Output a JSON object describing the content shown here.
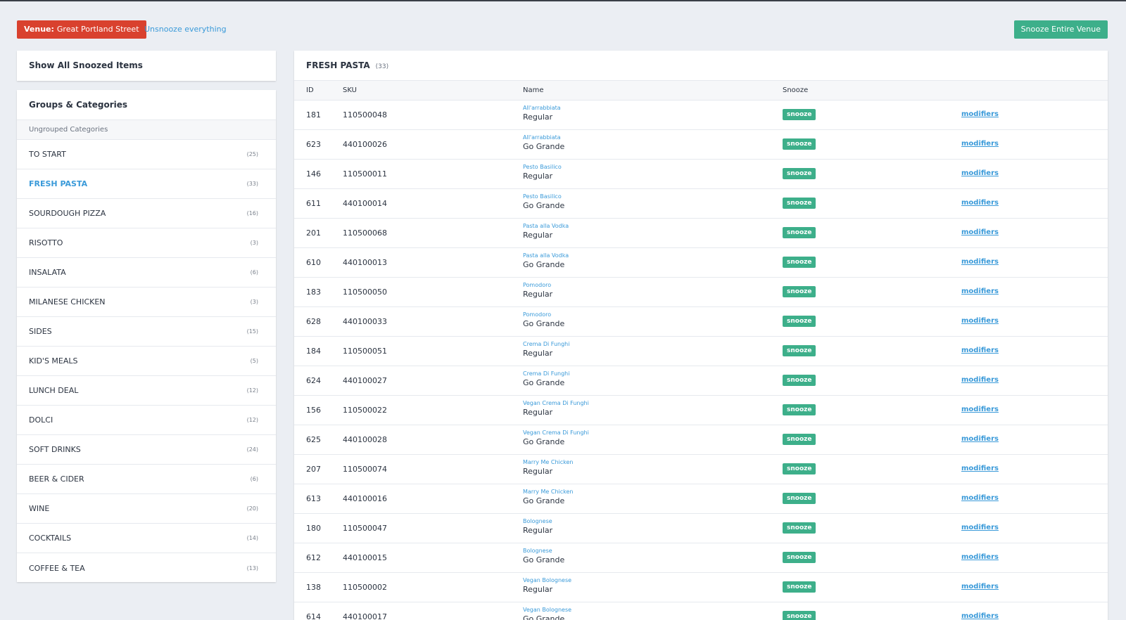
{
  "header": {
    "venue_label": "Venue:",
    "venue_name": "Great Portland Street",
    "unsnooze": "Unsnooze everything",
    "snooze_venue": "Snooze Entire Venue"
  },
  "sidebar": {
    "show_all": "Show All Snoozed Items",
    "groups_title": "Groups & Categories",
    "ungrouped": "Ungrouped Categories",
    "categories": [
      {
        "name": "TO START",
        "count": "(25)"
      },
      {
        "name": "FRESH PASTA",
        "count": "(33)"
      },
      {
        "name": "SOURDOUGH PIZZA",
        "count": "(16)"
      },
      {
        "name": "RISOTTO",
        "count": "(3)"
      },
      {
        "name": "INSALATA",
        "count": "(6)"
      },
      {
        "name": "MILANESE CHICKEN",
        "count": "(3)"
      },
      {
        "name": "SIDES",
        "count": "(15)"
      },
      {
        "name": "KID'S MEALS",
        "count": "(5)"
      },
      {
        "name": "LUNCH DEAL",
        "count": "(12)"
      },
      {
        "name": "DOLCI",
        "count": "(12)"
      },
      {
        "name": "SOFT DRINKS",
        "count": "(24)"
      },
      {
        "name": "BEER & CIDER",
        "count": "(6)"
      },
      {
        "name": "WINE",
        "count": "(20)"
      },
      {
        "name": "COCKTAILS",
        "count": "(14)"
      },
      {
        "name": "COFFEE & TEA",
        "count": "(13)"
      }
    ]
  },
  "table": {
    "title": "FRESH PASTA",
    "count": "(33)",
    "columns": [
      "ID",
      "SKU",
      "Name",
      "Snooze"
    ],
    "rows": [
      {
        "id": "181",
        "sku": "110500048",
        "item": "All'arrabbiata",
        "variant": "Regular",
        "snooze": "snooze",
        "modifiers": "modifiers"
      },
      {
        "id": "623",
        "sku": "440100026",
        "item": "All'arrabbiata",
        "variant": "Go Grande",
        "snooze": "snooze",
        "modifiers": "modifiers"
      },
      {
        "id": "146",
        "sku": "110500011",
        "item": "Pesto Basilico",
        "variant": "Regular",
        "snooze": "snooze",
        "modifiers": "modifiers"
      },
      {
        "id": "611",
        "sku": "440100014",
        "item": "Pesto Basilico",
        "variant": "Go Grande",
        "snooze": "snooze",
        "modifiers": "modifiers"
      },
      {
        "id": "201",
        "sku": "110500068",
        "item": "Pasta alla Vodka",
        "variant": "Regular",
        "snooze": "snooze",
        "modifiers": "modifiers"
      },
      {
        "id": "610",
        "sku": "440100013",
        "item": "Pasta alla Vodka",
        "variant": "Go Grande",
        "snooze": "snooze",
        "modifiers": "modifiers"
      },
      {
        "id": "183",
        "sku": "110500050",
        "item": "Pomodoro",
        "variant": "Regular",
        "snooze": "snooze",
        "modifiers": "modifiers"
      },
      {
        "id": "628",
        "sku": "440100033",
        "item": "Pomodoro",
        "variant": "Go Grande",
        "snooze": "snooze",
        "modifiers": "modifiers"
      },
      {
        "id": "184",
        "sku": "110500051",
        "item": "Crema Di Funghi",
        "variant": "Regular",
        "snooze": "snooze",
        "modifiers": "modifiers"
      },
      {
        "id": "624",
        "sku": "440100027",
        "item": "Crema Di Funghi",
        "variant": "Go Grande",
        "snooze": "snooze",
        "modifiers": "modifiers"
      },
      {
        "id": "156",
        "sku": "110500022",
        "item": "Vegan Crema Di Funghi",
        "variant": "Regular",
        "snooze": "snooze",
        "modifiers": "modifiers"
      },
      {
        "id": "625",
        "sku": "440100028",
        "item": "Vegan Crema Di Funghi",
        "variant": "Go Grande",
        "snooze": "snooze",
        "modifiers": "modifiers"
      },
      {
        "id": "207",
        "sku": "110500074",
        "item": "Marry Me Chicken",
        "variant": "Regular",
        "snooze": "snooze",
        "modifiers": "modifiers"
      },
      {
        "id": "613",
        "sku": "440100016",
        "item": "Marry Me Chicken",
        "variant": "Go Grande",
        "snooze": "snooze",
        "modifiers": "modifiers"
      },
      {
        "id": "180",
        "sku": "110500047",
        "item": "Bolognese",
        "variant": "Regular",
        "snooze": "snooze",
        "modifiers": "modifiers"
      },
      {
        "id": "612",
        "sku": "440100015",
        "item": "Bolognese",
        "variant": "Go Grande",
        "snooze": "snooze",
        "modifiers": "modifiers"
      },
      {
        "id": "138",
        "sku": "110500002",
        "item": "Vegan Bolognese",
        "variant": "Regular",
        "snooze": "snooze",
        "modifiers": "modifiers"
      },
      {
        "id": "614",
        "sku": "440100017",
        "item": "Vegan Bolognese",
        "variant": "Go Grande",
        "snooze": "snooze",
        "modifiers": "modifiers"
      }
    ]
  }
}
